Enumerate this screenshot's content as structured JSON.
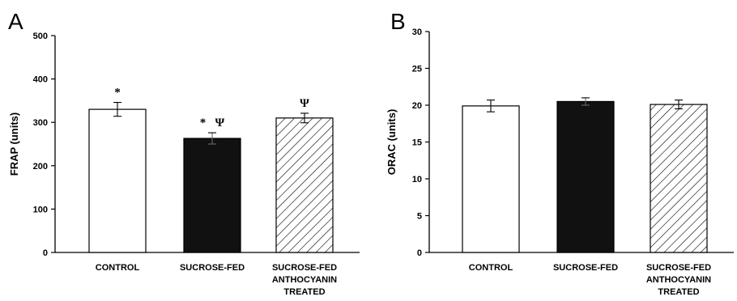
{
  "chart_data": [
    {
      "type": "bar",
      "panel_label": "A",
      "ylabel": "FRAP (units)",
      "ylim": [
        0,
        500
      ],
      "yticks": [
        0,
        100,
        200,
        300,
        400,
        500
      ],
      "categories": [
        [
          "CONTROL"
        ],
        [
          "SUCROSE-FED"
        ],
        [
          "SUCROSE-FED",
          "ANTHOCYANIN",
          "TREATED"
        ]
      ],
      "values": [
        330,
        263,
        310
      ],
      "errors": [
        16,
        13,
        11
      ],
      "fills": [
        "white",
        "black",
        "hatched"
      ],
      "annotations": [
        "*",
        "*   Ψ",
        "Ψ"
      ],
      "grid": false,
      "legend": "none"
    },
    {
      "type": "bar",
      "panel_label": "B",
      "ylabel": "ORAC (units)",
      "ylim": [
        0,
        30
      ],
      "yticks": [
        0,
        5,
        10,
        15,
        20,
        25,
        30
      ],
      "categories": [
        [
          "CONTROL"
        ],
        [
          "SUCROSE-FED"
        ],
        [
          "SUCROSE-FED",
          "ANTHOCYANIN",
          "TREATED"
        ]
      ],
      "values": [
        19.9,
        20.5,
        20.1
      ],
      "errors": [
        0.8,
        0.5,
        0.6
      ],
      "fills": [
        "white",
        "black",
        "hatched"
      ],
      "annotations": [
        "",
        "",
        ""
      ],
      "grid": false,
      "legend": "none"
    }
  ]
}
